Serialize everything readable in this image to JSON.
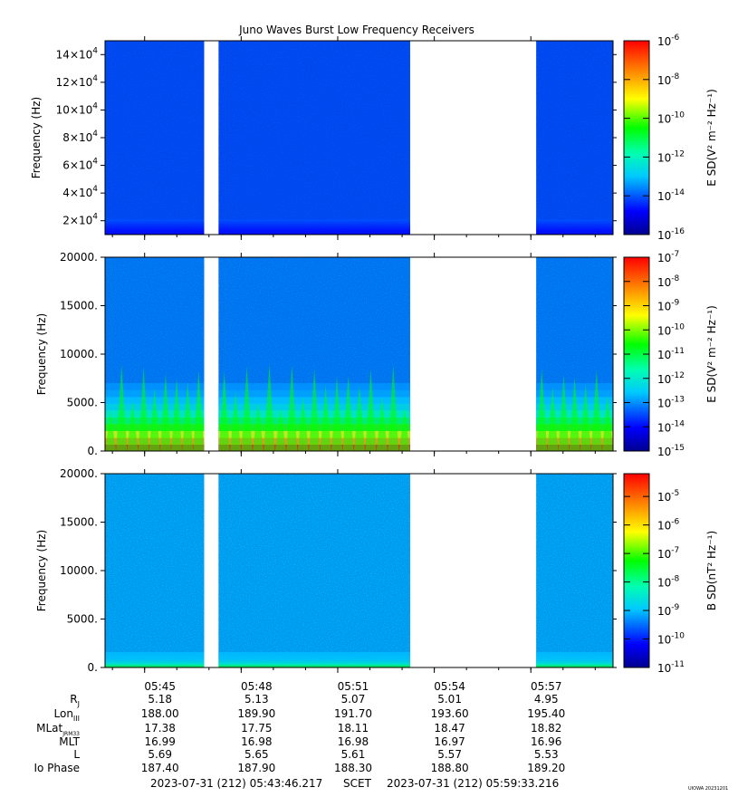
{
  "chart_data": [
    {
      "type": "heatmap",
      "panel": "top",
      "title": "Juno Waves Burst Low Frequency Receivers",
      "ylabel": "Frequency (Hz)",
      "ylim": [
        10000,
        150000
      ],
      "y_ticks": [
        {
          "value": 20000,
          "label": "2×10",
          "exp": "4"
        },
        {
          "value": 40000,
          "label": "4×10",
          "exp": "4"
        },
        {
          "value": 60000,
          "label": "6×10",
          "exp": "4"
        },
        {
          "value": 80000,
          "label": "8×10",
          "exp": "4"
        },
        {
          "value": 100000,
          "label": "10×10",
          "exp": "4"
        },
        {
          "value": 120000,
          "label": "12×10",
          "exp": "4"
        },
        {
          "value": 140000,
          "label": "14×10",
          "exp": "4"
        }
      ],
      "colorbar": {
        "label": "E SD(V² m⁻² Hz⁻¹)",
        "log_min": -16,
        "log_max": -6,
        "ticks": [
          {
            "value": -6,
            "label": "10",
            "exp": "-6"
          },
          {
            "value": -8,
            "label": "10",
            "exp": "-8"
          },
          {
            "value": -10,
            "label": "10",
            "exp": "-10"
          },
          {
            "value": -12,
            "label": "10",
            "exp": "-12"
          },
          {
            "value": -14,
            "label": "10",
            "exp": "-14"
          },
          {
            "value": -16,
            "label": "10",
            "exp": "-16"
          }
        ]
      },
      "background_level": -14
    },
    {
      "type": "heatmap",
      "panel": "middle",
      "ylabel": "Frequency (Hz)",
      "ylim": [
        0,
        20000
      ],
      "y_ticks": [
        {
          "value": 0,
          "label": "0."
        },
        {
          "value": 5000,
          "label": "5000."
        },
        {
          "value": 10000,
          "label": "10000."
        },
        {
          "value": 15000,
          "label": "15000."
        },
        {
          "value": 20000,
          "label": "20000."
        }
      ],
      "colorbar": {
        "label": "E SD(V² m⁻² Hz⁻¹)",
        "log_min": -15,
        "log_max": -7,
        "ticks": [
          {
            "value": -7,
            "label": "10",
            "exp": "-7"
          },
          {
            "value": -8,
            "label": "10",
            "exp": "-8"
          },
          {
            "value": -9,
            "label": "10",
            "exp": "-9"
          },
          {
            "value": -10,
            "label": "10",
            "exp": "-10"
          },
          {
            "value": -11,
            "label": "10",
            "exp": "-11"
          },
          {
            "value": -12,
            "label": "10",
            "exp": "-12"
          },
          {
            "value": -13,
            "label": "10",
            "exp": "-13"
          },
          {
            "value": -14,
            "label": "10",
            "exp": "-14"
          },
          {
            "value": -15,
            "label": "10",
            "exp": "-15"
          }
        ]
      },
      "background_level": -13
    },
    {
      "type": "heatmap",
      "panel": "bottom",
      "ylabel": "Frequency (Hz)",
      "ylim": [
        0,
        20000
      ],
      "y_ticks": [
        {
          "value": 0,
          "label": "0."
        },
        {
          "value": 5000,
          "label": "5000."
        },
        {
          "value": 10000,
          "label": "10000."
        },
        {
          "value": 15000,
          "label": "15000."
        },
        {
          "value": 20000,
          "label": "20000."
        }
      ],
      "colorbar": {
        "label": "B SD(nT² Hz⁻¹)",
        "log_min": -11,
        "log_max": -4.2,
        "ticks": [
          {
            "value": -5,
            "label": "10",
            "exp": "-5"
          },
          {
            "value": -6,
            "label": "10",
            "exp": "-6"
          },
          {
            "value": -7,
            "label": "10",
            "exp": "-7"
          },
          {
            "value": -8,
            "label": "10",
            "exp": "-8"
          },
          {
            "value": -9,
            "label": "10",
            "exp": "-9"
          },
          {
            "value": -10,
            "label": "10",
            "exp": "-10"
          },
          {
            "value": -11,
            "label": "10",
            "exp": "-11"
          }
        ]
      },
      "background_level": -9
    }
  ],
  "time_axis": {
    "start_seconds": 20626.217,
    "end_seconds": 21573.216,
    "major_ticks": [
      {
        "seconds": 20700,
        "label": "05:45"
      },
      {
        "seconds": 20880,
        "label": "05:48"
      },
      {
        "seconds": 21060,
        "label": "05:51"
      },
      {
        "seconds": 21240,
        "label": "05:54"
      },
      {
        "seconds": 21420,
        "label": "05:57"
      }
    ],
    "data_segments": [
      {
        "start_seconds": 20626.217,
        "end_seconds": 20811
      },
      {
        "start_seconds": 20838,
        "end_seconds": 21195
      },
      {
        "start_seconds": 21430,
        "end_seconds": 21573.216
      }
    ]
  },
  "ephemeris": {
    "rows": [
      {
        "label": "R",
        "sub": "J",
        "values": [
          "5.18",
          "5.13",
          "5.07",
          "5.01",
          "4.95"
        ]
      },
      {
        "label": "Lon",
        "sub": "III",
        "values": [
          "188.00",
          "189.90",
          "191.70",
          "193.60",
          "195.40"
        ]
      },
      {
        "label": "MLat",
        "sub": "JRM33",
        "values": [
          "17.38",
          "17.75",
          "18.11",
          "18.47",
          "18.82"
        ]
      },
      {
        "label": "MLT",
        "sub": "",
        "values": [
          "16.99",
          "16.98",
          "16.98",
          "16.97",
          "16.96"
        ]
      },
      {
        "label": "L",
        "sub": "",
        "values": [
          "5.69",
          "5.65",
          "5.61",
          "5.57",
          "5.53"
        ]
      },
      {
        "label": "Io Phase",
        "sub": "",
        "values": [
          "187.40",
          "187.90",
          "188.30",
          "188.80",
          "189.20"
        ]
      }
    ]
  },
  "footer": {
    "start_time": "2023-07-31 (212) 05:43:46.217",
    "axis_name": "SCET",
    "end_time": "2023-07-31 (212) 05:59:33.216",
    "stamp": "UIOWA 20231201"
  }
}
